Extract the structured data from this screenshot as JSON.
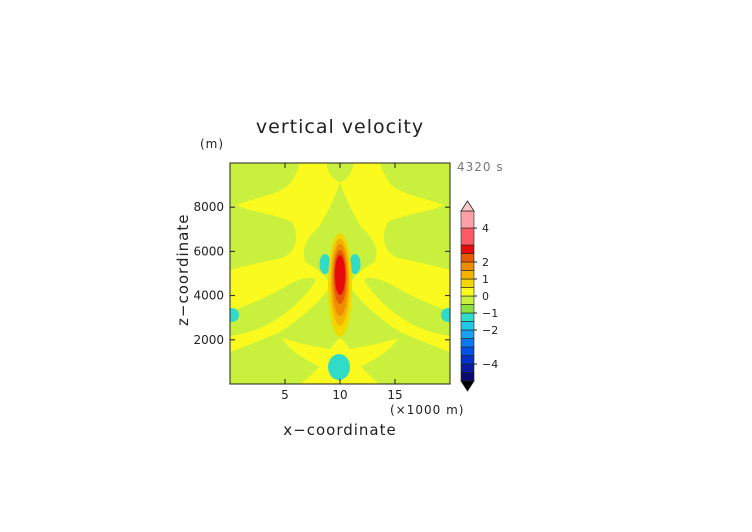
{
  "chart_data": {
    "type": "heatmap",
    "title": "vertical velocity",
    "time_label": "4320 s",
    "xlabel": "x−coordinate",
    "x_unit": "(×1000 m)",
    "ylabel": "z−coordinate",
    "y_unit": "(m)",
    "xlim": [
      0,
      20
    ],
    "ylim": [
      0,
      10000
    ],
    "xticks": [
      5,
      10,
      15
    ],
    "yticks": [
      2000,
      4000,
      6000,
      8000
    ],
    "xtick_labels": [
      "5",
      "10",
      "15"
    ],
    "ytick_labels": [
      "2000",
      "4000",
      "6000",
      "8000"
    ],
    "grid": false,
    "legend_position": "right",
    "colorbar": {
      "levels": [
        -5,
        -4.5,
        -4,
        -3.5,
        -3,
        -2.5,
        -2,
        -1.5,
        -1,
        -0.5,
        0,
        0.5,
        1,
        1.5,
        2,
        2.5,
        3,
        4,
        5
      ],
      "tick_values": [
        4,
        2,
        1,
        0,
        -1,
        -2,
        -4
      ],
      "tick_labels": [
        "4",
        "2",
        "1",
        "0",
        "−1",
        "−2",
        "−4"
      ],
      "colors": [
        "#0a0a6e",
        "#0a1aa0",
        "#0030c8",
        "#0050e6",
        "#0a78f0",
        "#1aa0f0",
        "#20c8e6",
        "#30dcc8",
        "#8ce040",
        "#c8f03c",
        "#fafa1e",
        "#f5d700",
        "#f2b400",
        "#ef8c00",
        "#e85a00",
        "#e60a0a",
        "#ff5a64",
        "#ffa0a8"
      ]
    },
    "features": [
      {
        "kind": "updraft_core",
        "x": 10,
        "z": 4700,
        "max_value": 3.0
      },
      {
        "kind": "downdraft",
        "x": 8.7,
        "z": 5500,
        "value": -0.6
      },
      {
        "kind": "downdraft",
        "x": 11.3,
        "z": 5500,
        "value": -0.6
      },
      {
        "kind": "downdraft",
        "x": 10,
        "z": 700,
        "value": -0.6
      },
      {
        "kind": "downdraft",
        "x": 0.3,
        "z": 3100,
        "value": -0.6
      },
      {
        "kind": "downdraft",
        "x": 19.7,
        "z": 3100,
        "value": -0.6
      }
    ]
  }
}
